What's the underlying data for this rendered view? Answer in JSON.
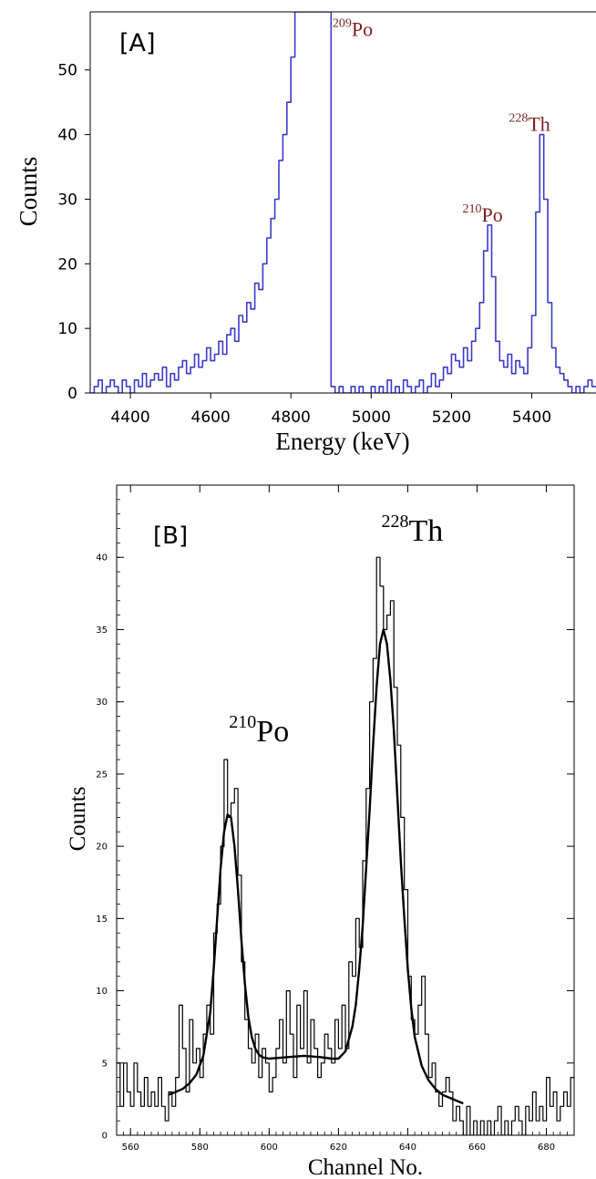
{
  "chart_data": [
    {
      "type": "line",
      "panel_label": "[A]",
      "xlabel": "Energy (keV)",
      "ylabel": "Counts",
      "xlim": [
        4300,
        5560
      ],
      "ylim": [
        0,
        59
      ],
      "xticks": [
        4400,
        4600,
        4800,
        5000,
        5200,
        5400
      ],
      "yticks": [
        0,
        10,
        20,
        30,
        40,
        50
      ],
      "grid": false,
      "line_color": "#3b3bcc",
      "annotation_color": "#7a1f1f",
      "annotations": [
        {
          "mass": "209",
          "element": "Po",
          "x": 4890,
          "y": 55
        },
        {
          "mass": "210",
          "element": "Po",
          "x": 5300,
          "y": 26
        },
        {
          "mass": "228",
          "element": "Th",
          "x": 5420,
          "y": 40
        }
      ],
      "series": [
        {
          "style": "step",
          "x": [
            4300,
            4310,
            4320,
            4330,
            4340,
            4350,
            4360,
            4370,
            4380,
            4390,
            4400,
            4410,
            4420,
            4430,
            4440,
            4450,
            4460,
            4470,
            4480,
            4490,
            4500,
            4510,
            4520,
            4530,
            4540,
            4550,
            4560,
            4570,
            4580,
            4590,
            4600,
            4610,
            4620,
            4630,
            4640,
            4650,
            4660,
            4670,
            4680,
            4690,
            4700,
            4710,
            4720,
            4730,
            4740,
            4750,
            4760,
            4770,
            4780,
            4790,
            4800,
            4810,
            4820,
            4830,
            4840,
            4850,
            4860,
            4870,
            4880,
            4890,
            4900,
            4910,
            4920,
            4930,
            4940,
            4950,
            4960,
            4970,
            4980,
            4990,
            5000,
            5010,
            5020,
            5030,
            5040,
            5050,
            5060,
            5070,
            5080,
            5090,
            5100,
            5110,
            5120,
            5130,
            5140,
            5150,
            5160,
            5170,
            5180,
            5190,
            5200,
            5210,
            5220,
            5230,
            5240,
            5250,
            5260,
            5270,
            5280,
            5290,
            5300,
            5310,
            5320,
            5330,
            5340,
            5350,
            5360,
            5370,
            5380,
            5390,
            5400,
            5410,
            5420,
            5430,
            5440,
            5450,
            5460,
            5470,
            5480,
            5490,
            5500,
            5510,
            5520,
            5530,
            5540,
            5550
          ],
          "y": [
            0,
            1,
            2,
            0,
            1,
            2,
            1,
            0,
            2,
            1,
            0,
            2,
            1,
            3,
            1,
            2,
            3,
            2,
            4,
            1,
            3,
            2,
            4,
            5,
            3,
            4,
            6,
            4,
            5,
            7,
            5,
            6,
            8,
            6,
            9,
            10,
            8,
            12,
            11,
            14,
            13,
            17,
            16,
            20,
            24,
            27,
            30,
            36,
            40,
            45,
            52,
            59,
            59,
            59,
            59,
            59,
            59,
            59,
            59,
            59,
            1,
            0,
            1,
            0,
            0,
            1,
            0,
            1,
            0,
            0,
            1,
            0,
            1,
            0,
            2,
            0,
            1,
            0,
            2,
            1,
            0,
            1,
            2,
            0,
            1,
            3,
            1,
            2,
            4,
            3,
            6,
            5,
            4,
            7,
            5,
            8,
            10,
            14,
            22,
            26,
            18,
            8,
            5,
            4,
            6,
            3,
            5,
            4,
            3,
            7,
            12,
            28,
            40,
            30,
            14,
            7,
            4,
            3,
            2,
            1,
            0,
            1,
            0,
            1,
            2,
            1
          ]
        }
      ]
    },
    {
      "type": "line",
      "panel_label": "[B]",
      "xlabel": "Channel No.",
      "ylabel": "Counts",
      "xlim": [
        556,
        688
      ],
      "ylim": [
        0,
        45
      ],
      "xticks": [
        560,
        580,
        600,
        620,
        640,
        660,
        680
      ],
      "yticks": [
        0,
        5,
        10,
        15,
        20,
        25,
        30,
        35,
        40
      ],
      "grid": false,
      "line_color": "#000000",
      "annotations": [
        {
          "mass": "210",
          "element": "Po",
          "x": 590,
          "y": 27
        },
        {
          "mass": "228",
          "element": "Th",
          "x": 635,
          "y": 40
        }
      ],
      "series": [
        {
          "style": "step",
          "x": [
            556,
            557,
            558,
            559,
            560,
            561,
            562,
            563,
            564,
            565,
            566,
            567,
            568,
            569,
            570,
            571,
            572,
            573,
            574,
            575,
            576,
            577,
            578,
            579,
            580,
            581,
            582,
            583,
            584,
            585,
            586,
            587,
            588,
            589,
            590,
            591,
            592,
            593,
            594,
            595,
            596,
            597,
            598,
            599,
            600,
            601,
            602,
            603,
            604,
            605,
            606,
            607,
            608,
            609,
            610,
            611,
            612,
            613,
            614,
            615,
            616,
            617,
            618,
            619,
            620,
            621,
            622,
            623,
            624,
            625,
            626,
            627,
            628,
            629,
            630,
            631,
            632,
            633,
            634,
            635,
            636,
            637,
            638,
            639,
            640,
            641,
            642,
            643,
            644,
            645,
            646,
            647,
            648,
            649,
            650,
            651,
            652,
            653,
            654,
            655,
            656,
            657,
            658,
            659,
            660,
            661,
            662,
            663,
            664,
            665,
            666,
            667,
            668,
            669,
            670,
            671,
            672,
            673,
            674,
            675,
            676,
            677,
            678,
            679,
            680,
            681,
            682,
            683,
            684,
            685,
            686,
            687
          ],
          "y": [
            5,
            2,
            5,
            3,
            2,
            5,
            3,
            2,
            4,
            2,
            3,
            2,
            4,
            2,
            1,
            3,
            2,
            4,
            9,
            6,
            3,
            8,
            5,
            6,
            4,
            7,
            9,
            7,
            14,
            16,
            20,
            26,
            22,
            23,
            24,
            18,
            12,
            8,
            6,
            5,
            7,
            4,
            6,
            5,
            3,
            4,
            6,
            8,
            5,
            10,
            7,
            4,
            9,
            6,
            10,
            5,
            8,
            6,
            4,
            5,
            7,
            6,
            5,
            8,
            6,
            9,
            6,
            12,
            11,
            15,
            13,
            19,
            24,
            30,
            33,
            40,
            38,
            35,
            36,
            37,
            31,
            27,
            22,
            17,
            11,
            8,
            7,
            9,
            11,
            7,
            4,
            5,
            3,
            2,
            3,
            4,
            3,
            1,
            2,
            1,
            0,
            2,
            0,
            1,
            0,
            1,
            0,
            1,
            0,
            1,
            2,
            0,
            1,
            0,
            1,
            2,
            1,
            0,
            2,
            1,
            3,
            1,
            2,
            1,
            4,
            2,
            3,
            1,
            2,
            3,
            2,
            4
          ]
        },
        {
          "style": "smooth",
          "x": [
            571,
            573,
            575,
            577,
            579,
            581,
            583,
            584,
            585,
            586,
            587,
            588,
            589,
            590,
            591,
            592,
            593,
            594,
            595,
            596,
            597,
            598,
            600,
            605,
            610,
            615,
            618,
            620,
            622,
            624,
            625,
            626,
            627,
            628,
            629,
            630,
            631,
            632,
            633,
            634,
            635,
            636,
            637,
            638,
            639,
            640,
            641,
            642,
            644,
            646,
            648,
            650,
            652,
            654,
            656
          ],
          "y": [
            2.8,
            3.0,
            3.2,
            3.6,
            4.2,
            5.5,
            8.5,
            11.5,
            15.0,
            18.5,
            21.0,
            22.2,
            22.0,
            20.0,
            17.0,
            13.5,
            10.5,
            8.2,
            6.8,
            6.0,
            5.6,
            5.4,
            5.3,
            5.4,
            5.5,
            5.4,
            5.3,
            5.3,
            5.8,
            7.5,
            9.0,
            11.5,
            14.5,
            18.5,
            22.5,
            27.0,
            31.0,
            34.0,
            35.0,
            34.0,
            31.5,
            28.0,
            23.5,
            19.0,
            15.0,
            11.5,
            8.8,
            6.8,
            4.8,
            3.8,
            3.2,
            2.8,
            2.6,
            2.4,
            2.2
          ]
        }
      ]
    }
  ]
}
